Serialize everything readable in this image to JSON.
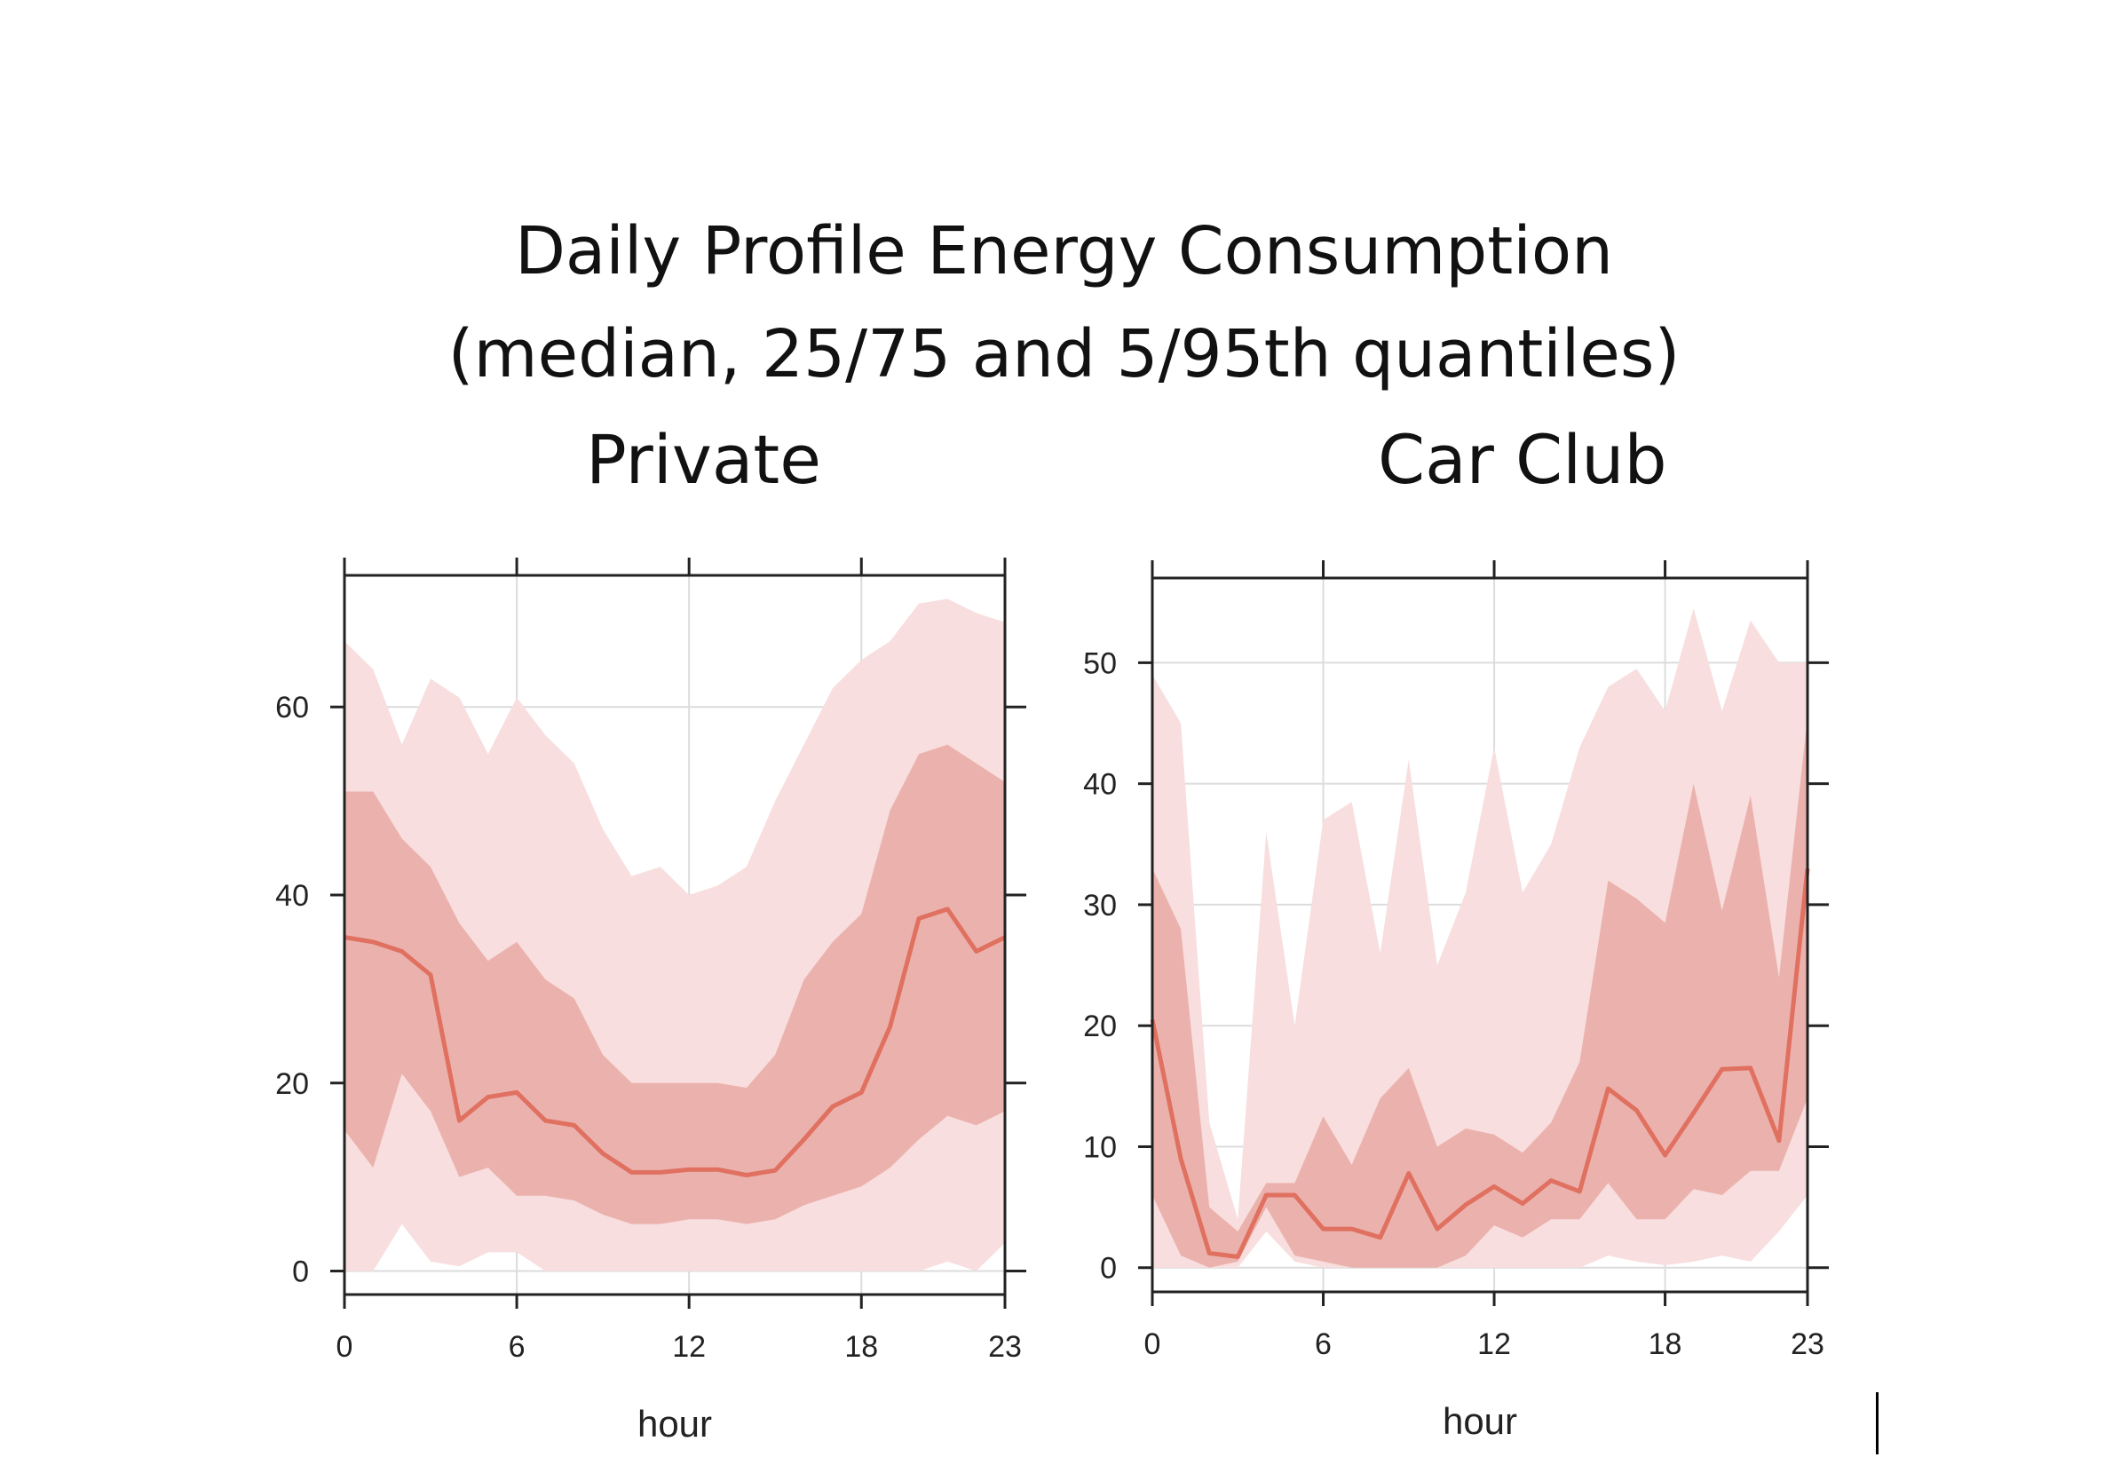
{
  "slide": {
    "title_line1": "Daily Profile Energy Consumption",
    "title_line2": "(median, 25/75 and 5/95th quantiles)"
  },
  "colors": {
    "band_outer": "#f8dede",
    "band_inner": "#ebb2ad",
    "median_line": "#e07060",
    "grid": "#dcdcdc",
    "axis": "#222222"
  },
  "chart_data": [
    {
      "type": "area",
      "title": "Private",
      "xlabel": "hour",
      "ylabel": "",
      "xlim": [
        0,
        23
      ],
      "ylim": [
        -2.5,
        74
      ],
      "xticks": [
        0,
        6,
        12,
        18,
        23
      ],
      "yticks": [
        0,
        20,
        40,
        60
      ],
      "grid": true,
      "x": [
        0,
        1,
        2,
        3,
        4,
        5,
        6,
        7,
        8,
        9,
        10,
        11,
        12,
        13,
        14,
        15,
        16,
        17,
        18,
        19,
        20,
        21,
        22,
        23
      ],
      "series": [
        {
          "role": "q05",
          "values": [
            0,
            0,
            5,
            1,
            0.5,
            2,
            2,
            0,
            0,
            0,
            0,
            0,
            0,
            0,
            0,
            0,
            0,
            0,
            0,
            0,
            0,
            1,
            0,
            3
          ]
        },
        {
          "role": "q95",
          "values": [
            67,
            64,
            56,
            63,
            61,
            55,
            61,
            57,
            54,
            47,
            42,
            43,
            40,
            41,
            43,
            50,
            56,
            62,
            65,
            67,
            71,
            71.5,
            70,
            69
          ]
        },
        {
          "role": "q25",
          "values": [
            15,
            11,
            21,
            17,
            10,
            11,
            8,
            8,
            7.5,
            6,
            5,
            5,
            5.5,
            5.5,
            5,
            5.5,
            7,
            8,
            9,
            11,
            14,
            16.5,
            15.5,
            17
          ]
        },
        {
          "role": "q75",
          "values": [
            51,
            51,
            46,
            43,
            37,
            33,
            35,
            31,
            29,
            23,
            20,
            20,
            20,
            20,
            19.5,
            23,
            31,
            35,
            38,
            49,
            55,
            56,
            54,
            52
          ]
        },
        {
          "role": "median",
          "values": [
            35.5,
            35,
            34,
            31.5,
            16,
            18.5,
            19,
            16,
            15.5,
            12.5,
            10.5,
            10.5,
            10.8,
            10.8,
            10.2,
            10.7,
            14,
            17.5,
            19,
            26,
            37.5,
            38.5,
            34,
            35.5
          ]
        }
      ]
    },
    {
      "type": "area",
      "title": "Car Club",
      "xlabel": "hour",
      "ylabel": "",
      "xlim": [
        0,
        23
      ],
      "ylim": [
        -2,
        57
      ],
      "xticks": [
        0,
        6,
        12,
        18,
        23
      ],
      "yticks": [
        0,
        10,
        20,
        30,
        40,
        50
      ],
      "grid": true,
      "x": [
        0,
        1,
        2,
        3,
        4,
        5,
        6,
        7,
        8,
        9,
        10,
        11,
        12,
        13,
        14,
        15,
        16,
        17,
        18,
        19,
        20,
        21,
        22,
        23
      ],
      "series": [
        {
          "role": "q05",
          "values": [
            0,
            0,
            0,
            0,
            3,
            0.5,
            0,
            0,
            0,
            0,
            0,
            0,
            0,
            0,
            0,
            0,
            1,
            0.5,
            0.2,
            0.5,
            1,
            0.5,
            3,
            6
          ]
        },
        {
          "role": "q95",
          "values": [
            49,
            45,
            12,
            4,
            36,
            20,
            37,
            38.5,
            26,
            42,
            25,
            31,
            43,
            31,
            35,
            43,
            48,
            49.5,
            46,
            54.5,
            46,
            53.5,
            50,
            50
          ]
        },
        {
          "role": "q25",
          "values": [
            6,
            1,
            0,
            0.5,
            5,
            1,
            0.5,
            0,
            0,
            0,
            0,
            1,
            3.5,
            2.5,
            4,
            4,
            7,
            4,
            4,
            6.5,
            6,
            8,
            8,
            14
          ]
        },
        {
          "role": "q75",
          "values": [
            33,
            28,
            5,
            3,
            7,
            7,
            12.5,
            8.5,
            14,
            16.5,
            10,
            11.5,
            11,
            9.5,
            12,
            17,
            32,
            30.5,
            28.5,
            40,
            29.5,
            39,
            24,
            45.5
          ]
        },
        {
          "role": "median",
          "values": [
            20.5,
            9,
            1.2,
            0.9,
            6,
            6,
            3.2,
            3.2,
            2.5,
            7.8,
            3.2,
            5.2,
            6.7,
            5.3,
            7.2,
            6.3,
            14.8,
            13,
            9.3,
            12.8,
            16.4,
            16.5,
            10.5,
            33
          ]
        }
      ]
    }
  ]
}
